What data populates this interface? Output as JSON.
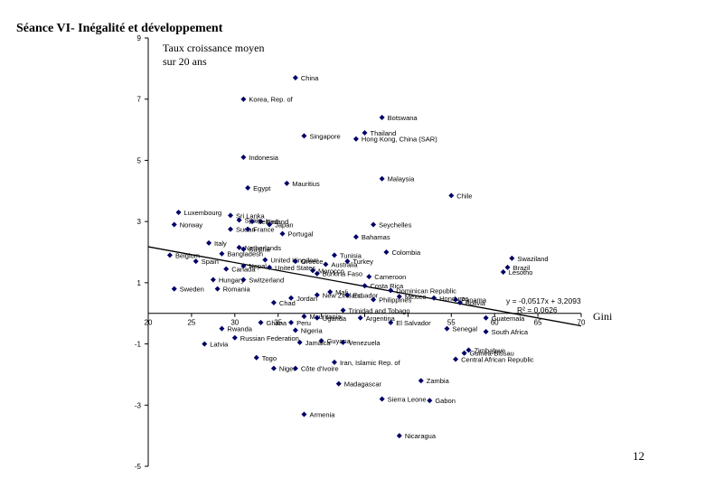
{
  "slide": {
    "title": "Séance VI- Inégalité et développement",
    "page_number": "12"
  },
  "chart_data": {
    "type": "scatter",
    "title": "",
    "ylabel_lines": [
      "Taux croissance moyen",
      "sur 20 ans"
    ],
    "xlabel": "Gini",
    "xlim": [
      20,
      70
    ],
    "ylim": [
      -5,
      9
    ],
    "x_ticks": [
      20,
      25,
      30,
      35,
      40,
      45,
      50,
      55,
      60,
      65,
      70
    ],
    "x_tick_labels": [
      "20",
      "25",
      "30",
      "35",
      "",
      "",
      "",
      "55",
      "60",
      "65",
      "70"
    ],
    "y_ticks": [
      9,
      7,
      5,
      3,
      1,
      -1,
      -3,
      -5
    ],
    "y_tick_labels": [
      "9",
      "7",
      "5",
      "3",
      "1",
      "-1",
      "-3",
      "-5"
    ],
    "trendline": {
      "slope": -0.0517,
      "intercept": 3.2093,
      "x_range": [
        20,
        70
      ]
    },
    "equation": "y = -0,0517x + 3,2093",
    "r_squared": "R² = 0,0626",
    "marker_color": "#000066",
    "line_color": "#000000",
    "points": [
      {
        "label": "China",
        "x": 37,
        "y": 7.7
      },
      {
        "label": "Korea, Rep. of",
        "x": 31,
        "y": 7.0
      },
      {
        "label": "Botswana",
        "x": 47,
        "y": 6.4
      },
      {
        "label": "Thailand",
        "x": 45,
        "y": 5.9
      },
      {
        "label": "Hong Kong, China (SAR)",
        "x": 44,
        "y": 5.7
      },
      {
        "label": "Singapore",
        "x": 38,
        "y": 5.8
      },
      {
        "label": "Indonesia",
        "x": 31,
        "y": 5.1
      },
      {
        "label": "Malaysia",
        "x": 47,
        "y": 4.4
      },
      {
        "label": "Mauritius",
        "x": 36,
        "y": 4.25
      },
      {
        "label": "Egypt",
        "x": 31.5,
        "y": 4.1
      },
      {
        "label": "Chile",
        "x": 55,
        "y": 3.85
      },
      {
        "label": "Luxembourg",
        "x": 23.5,
        "y": 3.3
      },
      {
        "label": "Sri Lanka",
        "x": 29.5,
        "y": 3.2
      },
      {
        "label": "Spain",
        "x": 30.5,
        "y": 3.05
      },
      {
        "label": "Finland",
        "x": 33,
        "y": 3.0
      },
      {
        "label": "Ireland",
        "x": 32,
        "y": 3.0
      },
      {
        "label": "Norway",
        "x": 23,
        "y": 2.9
      },
      {
        "label": "Japan",
        "x": 34,
        "y": 2.9
      },
      {
        "label": "Sudan",
        "x": 29.5,
        "y": 2.75
      },
      {
        "label": "France",
        "x": 31.5,
        "y": 2.75
      },
      {
        "label": "Seychelles",
        "x": 46,
        "y": 2.9
      },
      {
        "label": "Portugal",
        "x": 35.5,
        "y": 2.6
      },
      {
        "label": "Bahamas",
        "x": 44,
        "y": 2.5
      },
      {
        "label": "Italy",
        "x": 27,
        "y": 2.3
      },
      {
        "label": "Netherlands",
        "x": 30.5,
        "y": 2.15
      },
      {
        "label": "Austria",
        "x": 31,
        "y": 2.1
      },
      {
        "label": "Colombia",
        "x": 47.5,
        "y": 2.0
      },
      {
        "label": "Belgium",
        "x": 22.5,
        "y": 1.9
      },
      {
        "label": "Bangladesh",
        "x": 28.5,
        "y": 1.95
      },
      {
        "label": "Tunisia",
        "x": 41.5,
        "y": 1.9
      },
      {
        "label": "Swaziland",
        "x": 62,
        "y": 1.8
      },
      {
        "label": "Spain",
        "x": 25.5,
        "y": 1.7
      },
      {
        "label": "United Kingdom",
        "x": 33.5,
        "y": 1.75
      },
      {
        "label": "Greece",
        "x": 37,
        "y": 1.7
      },
      {
        "label": "Turkey",
        "x": 43,
        "y": 1.7
      },
      {
        "label": "Australia",
        "x": 40.5,
        "y": 1.6
      },
      {
        "label": "Nepal",
        "x": 31,
        "y": 1.55
      },
      {
        "label": "Canada",
        "x": 29,
        "y": 1.45
      },
      {
        "label": "United States",
        "x": 34,
        "y": 1.5
      },
      {
        "label": "Morocco",
        "x": 39,
        "y": 1.4
      },
      {
        "label": "Brazil",
        "x": 61.5,
        "y": 1.5
      },
      {
        "label": "Lesotho",
        "x": 61,
        "y": 1.35
      },
      {
        "label": "Burkina Faso",
        "x": 39.5,
        "y": 1.3
      },
      {
        "label": "Cameroon",
        "x": 45.5,
        "y": 1.2
      },
      {
        "label": "Hungary",
        "x": 27.5,
        "y": 1.1
      },
      {
        "label": "Switzerland",
        "x": 31,
        "y": 1.1
      },
      {
        "label": "Sweden",
        "x": 23,
        "y": 0.8
      },
      {
        "label": "Romania",
        "x": 28,
        "y": 0.8
      },
      {
        "label": "Costa Rica",
        "x": 45,
        "y": 0.9
      },
      {
        "label": "Dominican Republic",
        "x": 48,
        "y": 0.75
      },
      {
        "label": "Mali",
        "x": 41,
        "y": 0.7
      },
      {
        "label": "New Zealand",
        "x": 39.5,
        "y": 0.6
      },
      {
        "label": "Ecuador",
        "x": 43,
        "y": 0.6
      },
      {
        "label": "Mexico",
        "x": 49,
        "y": 0.55
      },
      {
        "label": "Jordan",
        "x": 36.5,
        "y": 0.5
      },
      {
        "label": "Philippines",
        "x": 46,
        "y": 0.45
      },
      {
        "label": "Honduras",
        "x": 53,
        "y": 0.5
      },
      {
        "label": "Panama",
        "x": 55.5,
        "y": 0.45
      },
      {
        "label": "Chad",
        "x": 34.5,
        "y": 0.35
      },
      {
        "label": "Trinidad and Tobago",
        "x": 42.5,
        "y": 0.1
      },
      {
        "label": "Bolivia",
        "x": 56,
        "y": 0.35
      },
      {
        "label": "Guatemala",
        "x": 59,
        "y": -0.15
      },
      {
        "label": "Argentina",
        "x": 44.5,
        "y": -0.15
      },
      {
        "label": "Ghana",
        "x": 33,
        "y": -0.3
      },
      {
        "label": "Peru",
        "x": 36.5,
        "y": -0.3
      },
      {
        "label": "El Salvador",
        "x": 48,
        "y": -0.3
      },
      {
        "label": "Mauritania",
        "x": 38,
        "y": -0.1
      },
      {
        "label": "Uganda",
        "x": 39.5,
        "y": -0.15
      },
      {
        "label": "Rwanda",
        "x": 28.5,
        "y": -0.5
      },
      {
        "label": "Nigeria",
        "x": 37,
        "y": -0.55
      },
      {
        "label": "Senegal",
        "x": 54.5,
        "y": -0.5
      },
      {
        "label": "South Africa",
        "x": 59,
        "y": -0.6
      },
      {
        "label": "Russian Federation",
        "x": 30,
        "y": -0.8
      },
      {
        "label": "Guyana",
        "x": 40,
        "y": -0.9
      },
      {
        "label": "Venezuela",
        "x": 42.5,
        "y": -0.95
      },
      {
        "label": "Latvia",
        "x": 26.5,
        "y": -1.0
      },
      {
        "label": "Jamaica",
        "x": 37.5,
        "y": -0.95
      },
      {
        "label": "Zimbabwe",
        "x": 57,
        "y": -1.2
      },
      {
        "label": "Guinea-Bissau",
        "x": 56.5,
        "y": -1.3
      },
      {
        "label": "Central African Republic",
        "x": 55.5,
        "y": -1.5
      },
      {
        "label": "Togo",
        "x": 32.5,
        "y": -1.45
      },
      {
        "label": "Iran, Islamic Rep. of",
        "x": 41.5,
        "y": -1.6
      },
      {
        "label": "Niger",
        "x": 34.5,
        "y": -1.8
      },
      {
        "label": "Côte d'Ivoire",
        "x": 37,
        "y": -1.8
      },
      {
        "label": "Zambia",
        "x": 51.5,
        "y": -2.2
      },
      {
        "label": "Madagascar",
        "x": 42,
        "y": -2.3
      },
      {
        "label": "Sierra Leone",
        "x": 47,
        "y": -2.8
      },
      {
        "label": "Gabon",
        "x": 52.5,
        "y": -2.85
      },
      {
        "label": "Armenia",
        "x": 38,
        "y": -3.3
      },
      {
        "label": "Nicaragua",
        "x": 49,
        "y": -4.0
      }
    ]
  }
}
